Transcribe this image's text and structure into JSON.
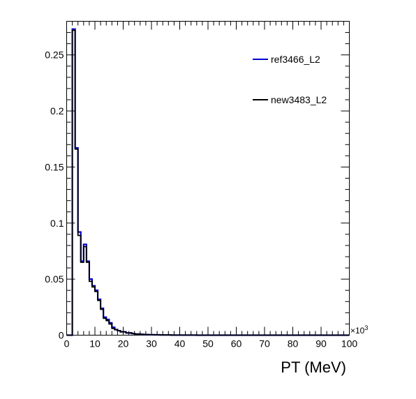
{
  "chart_data": {
    "type": "line",
    "title": "",
    "xlabel": "PT (MeV)",
    "ylabel": "",
    "x_multiplier_label": "×10",
    "x_multiplier_exp": "3",
    "xlim": [
      0,
      100
    ],
    "ylim": [
      0,
      0.28
    ],
    "x_ticks": [
      0,
      10,
      20,
      30,
      40,
      50,
      60,
      70,
      80,
      90,
      100
    ],
    "x_tick_labels": [
      "0",
      "10",
      "20",
      "30",
      "40",
      "50",
      "60",
      "70",
      "80",
      "90",
      "100"
    ],
    "y_ticks": [
      0,
      0.05,
      0.1,
      0.15,
      0.2,
      0.25
    ],
    "y_tick_labels": [
      "0",
      "0.05",
      "0.1",
      "0.15",
      "0.2",
      "0.25"
    ],
    "bin_width": 1,
    "bin_edges_start": 0,
    "grid": false,
    "legend_position": "top-right",
    "series": [
      {
        "name": "ref3466_L2",
        "color": "#0000cc",
        "values": [
          0,
          0,
          0.273,
          0.167,
          0.092,
          0.066,
          0.081,
          0.066,
          0.05,
          0.044,
          0.04,
          0.032,
          0.024,
          0.016,
          0.014,
          0.011,
          0.007,
          0.005,
          0.004,
          0.003,
          0.003,
          0.002,
          0.002,
          0.0015,
          0.001,
          0.001,
          0.0008,
          0.0006,
          0.0005,
          0.0004,
          0.0004,
          0.0003,
          0.0003,
          0.0002,
          0.0002,
          0.0002,
          0.0002,
          0.0001,
          0.0001,
          0.0001,
          0.0001,
          0.0001,
          0.0001,
          0.0001,
          0.0001,
          0.0001
        ]
      },
      {
        "name": "new3483_L2",
        "color": "#000000",
        "values": [
          0,
          0,
          0.272,
          0.166,
          0.089,
          0.065,
          0.079,
          0.065,
          0.048,
          0.043,
          0.039,
          0.031,
          0.023,
          0.015,
          0.013,
          0.01,
          0.006,
          0.005,
          0.004,
          0.003,
          0.003,
          0.002,
          0.002,
          0.0015,
          0.001,
          0.001,
          0.0008,
          0.0006,
          0.0005,
          0.0004,
          0.0004,
          0.0003,
          0.0003,
          0.0002,
          0.0002,
          0.0002,
          0.0002,
          0.0001,
          0.0001,
          0.0001,
          0.0001,
          0.0001,
          0.0001,
          0.0001,
          0.0001,
          0.0001
        ]
      }
    ]
  }
}
